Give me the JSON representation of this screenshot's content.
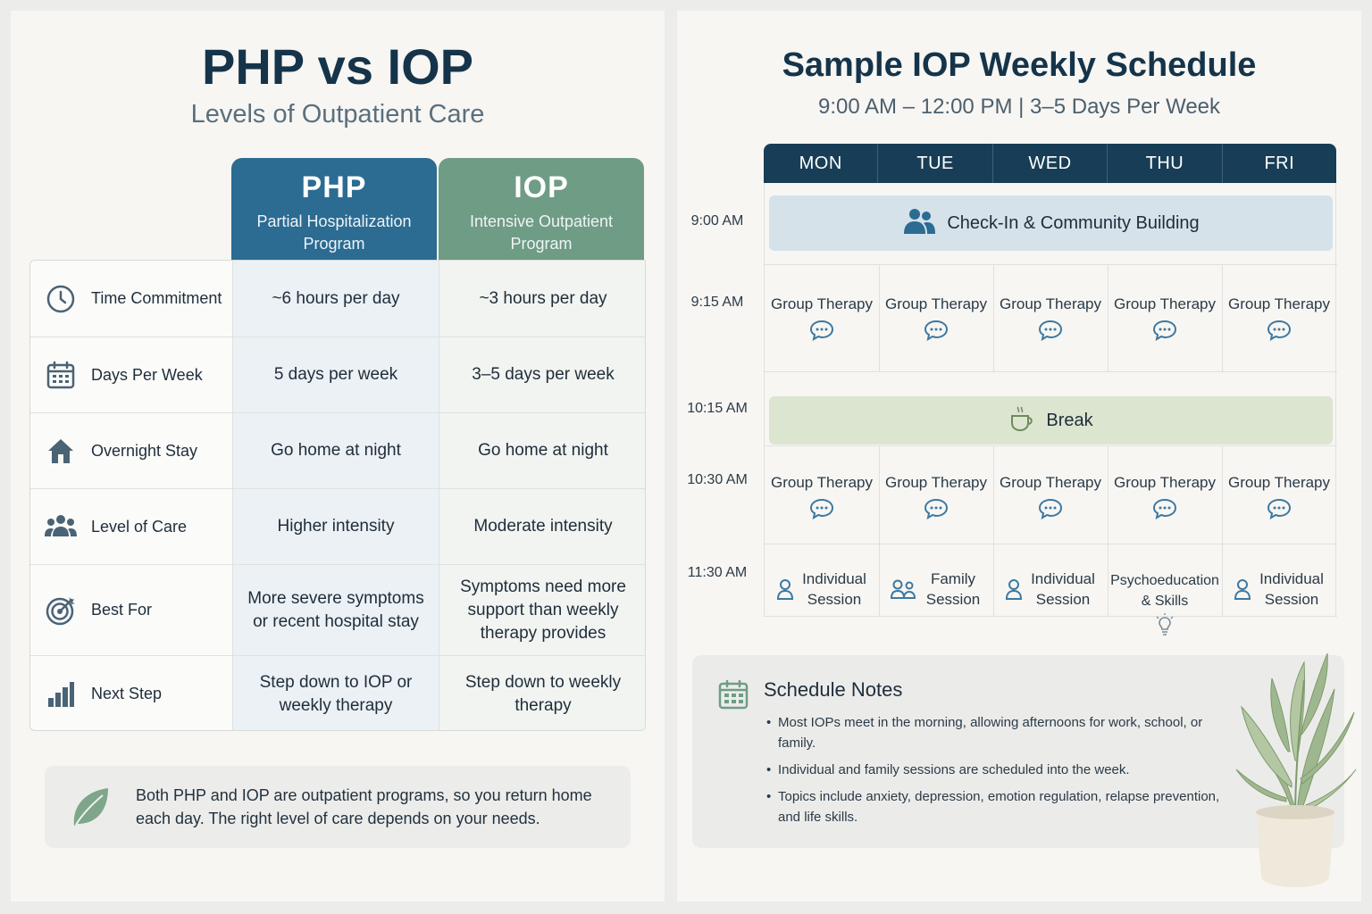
{
  "left": {
    "title": "PHP vs IOP",
    "subtitle": "Levels of Outpatient Care",
    "php_header": {
      "abbr": "PHP",
      "full": "Partial Hospitalization Program"
    },
    "iop_header": {
      "abbr": "IOP",
      "full": "Intensive Outpatient Program"
    },
    "rows": [
      {
        "label": "Time Commitment",
        "icon": "clock-icon",
        "php": "~6 hours per day",
        "iop": "~3 hours per day"
      },
      {
        "label": "Days Per Week",
        "icon": "calendar-icon",
        "php": "5 days per week",
        "iop": "3–5 days per week"
      },
      {
        "label": "Overnight Stay",
        "icon": "house-icon",
        "php": "Go home at night",
        "iop": "Go home at night"
      },
      {
        "label": "Level of Care",
        "icon": "group-icon",
        "php": "Higher intensity",
        "iop": "Moderate intensity"
      },
      {
        "label": "Best For",
        "icon": "target-icon",
        "php": "More severe symptoms or recent hospital stay",
        "iop": "Symptoms need more support than weekly therapy provides"
      },
      {
        "label": "Next Step",
        "icon": "bar-chart-icon",
        "php": "Step down to IOP or weekly therapy",
        "iop": "Step down to weekly therapy"
      }
    ],
    "note": "Both PHP and IOP are outpatient programs, so you return home each day. The right level of care depends on your needs."
  },
  "right": {
    "title": "Sample IOP Weekly Schedule",
    "subtitle": "9:00 AM – 12:00 PM | 3–5 Days Per Week",
    "days": [
      "MON",
      "TUE",
      "WED",
      "THU",
      "FRI"
    ],
    "times": [
      "9:00 AM",
      "9:15 AM",
      "10:15 AM",
      "10:30 AM",
      "11:30 AM"
    ],
    "checkin": "Check-In & Community Building",
    "break": "Break",
    "group_therapy": [
      "Group Therapy",
      "Group Therapy",
      "Group Therapy",
      "Group Therapy",
      "Group Therapy"
    ],
    "group_therapy_2": [
      "Group Therapy",
      "Group Therapy",
      "Group Therapy",
      "Group Therapy",
      "Group Therapy"
    ],
    "last_row": [
      "Individual Session",
      "Family Session",
      "Individual Session",
      "Psychoeducation & Skills",
      "Individual Session"
    ],
    "notes_title": "Schedule Notes",
    "notes": [
      "Most IOPs meet in the morning, allowing afternoons for work, school, or family.",
      "Individual and family sessions are scheduled into the week.",
      "Topics include anxiety, depression, emotion regulation, relapse prevention, and life skills."
    ],
    "colors": {
      "navy": "#173e56",
      "php_blue": "#2c6b92",
      "iop_green": "#6f9c84",
      "checkin": "#d5e2ea",
      "break": "#dbe5d0"
    }
  }
}
